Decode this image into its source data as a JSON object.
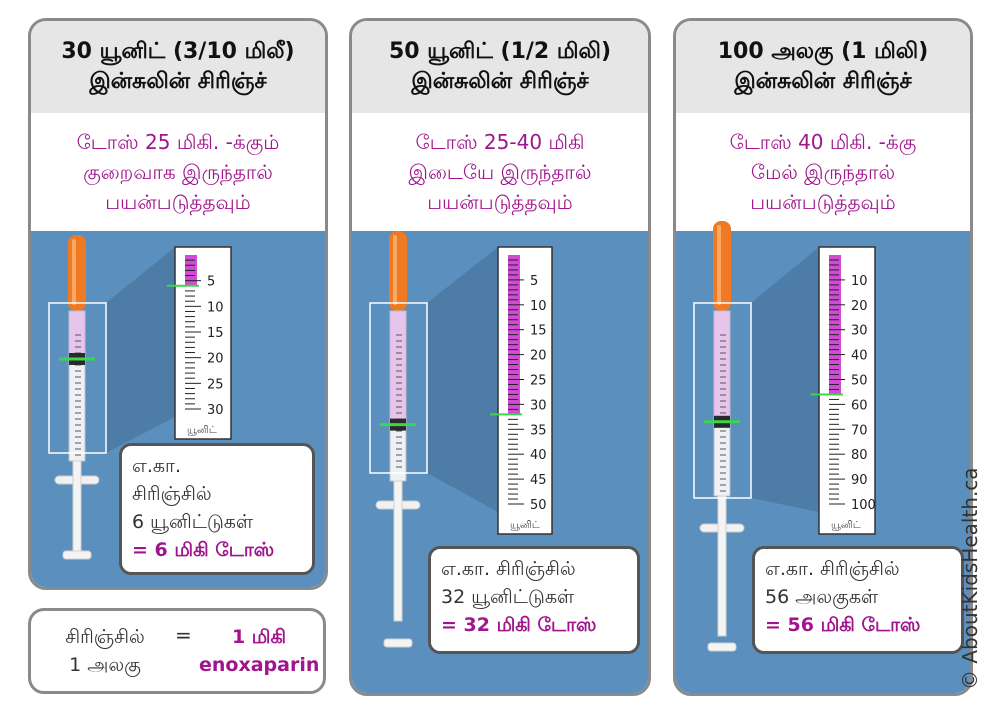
{
  "panels": [
    {
      "title_line1": "30 யூனிட் (3/10 மிலீ)",
      "title_line2": "இன்சுலின் சிரிஞ்ச்",
      "dose_line1": "டோஸ் 25 மிகி. -க்கும்",
      "dose_line2": "குறைவாக இருந்தால்",
      "dose_line3": "பயன்படுத்தவும்",
      "scale_labels": [
        "5",
        "10",
        "15",
        "20",
        "25",
        "30"
      ],
      "scale_unit": "யூனிட்",
      "info_line1": "எ.கா.",
      "info_line2": "சிரிஞ்சில்",
      "info_line3": "6 யூனிட்டுகள்",
      "info_line4": "= 6 மிகி டோஸ்",
      "reading": 6
    },
    {
      "title_line1": "50 யூனிட் (1/2 மிலி)",
      "title_line2": "இன்சுலின் சிரிஞ்ச்",
      "dose_line1": "டோஸ் 25-40 மிகி",
      "dose_line2": "இடையே இருந்தால்",
      "dose_line3": "பயன்படுத்தவும்",
      "scale_labels": [
        "5",
        "10",
        "15",
        "20",
        "25",
        "30",
        "35",
        "40",
        "45",
        "50"
      ],
      "scale_unit": "யூனிட்",
      "info_line1": "எ.கா. சிரிஞ்சில்",
      "info_line2": "32 யூனிட்டுகள்",
      "info_line3": "= 32 மிகி டோஸ்",
      "reading": 32
    },
    {
      "title_line1": "100 அலகு (1 மிலி)",
      "title_line2": "இன்சுலின் சிரிஞ்ச்",
      "dose_line1": "டோஸ் 40 மிகி. -க்கு",
      "dose_line2": "மேல் இருந்தால்",
      "dose_line3": "பயன்படுத்தவும்",
      "scale_labels": [
        "10",
        "20",
        "30",
        "40",
        "50",
        "60",
        "70",
        "80",
        "90",
        "100"
      ],
      "scale_unit": "யூனிட்",
      "info_line1": "எ.கா. சிரிஞ்சில்",
      "info_line2": "56 அலகுகள்",
      "info_line3": "= 56 மிகி டோஸ்",
      "reading": 56
    }
  ],
  "legend": {
    "left_line1": "சிரிஞ்சில்",
    "left_line2": "1 அலகு",
    "equals": "=",
    "right_line1": "1 மிகி",
    "right_line2": "enoxaparin"
  },
  "credit": "© AboutKidsHealth.ca",
  "colors": {
    "panel_blue": "#5b8fbd",
    "header_grey": "#e6e6e6",
    "accent_magenta": "#a0148c",
    "fill_magenta": "#d24bd7",
    "cap_orange": "#f07a24",
    "marker_green": "#3bd64a"
  }
}
